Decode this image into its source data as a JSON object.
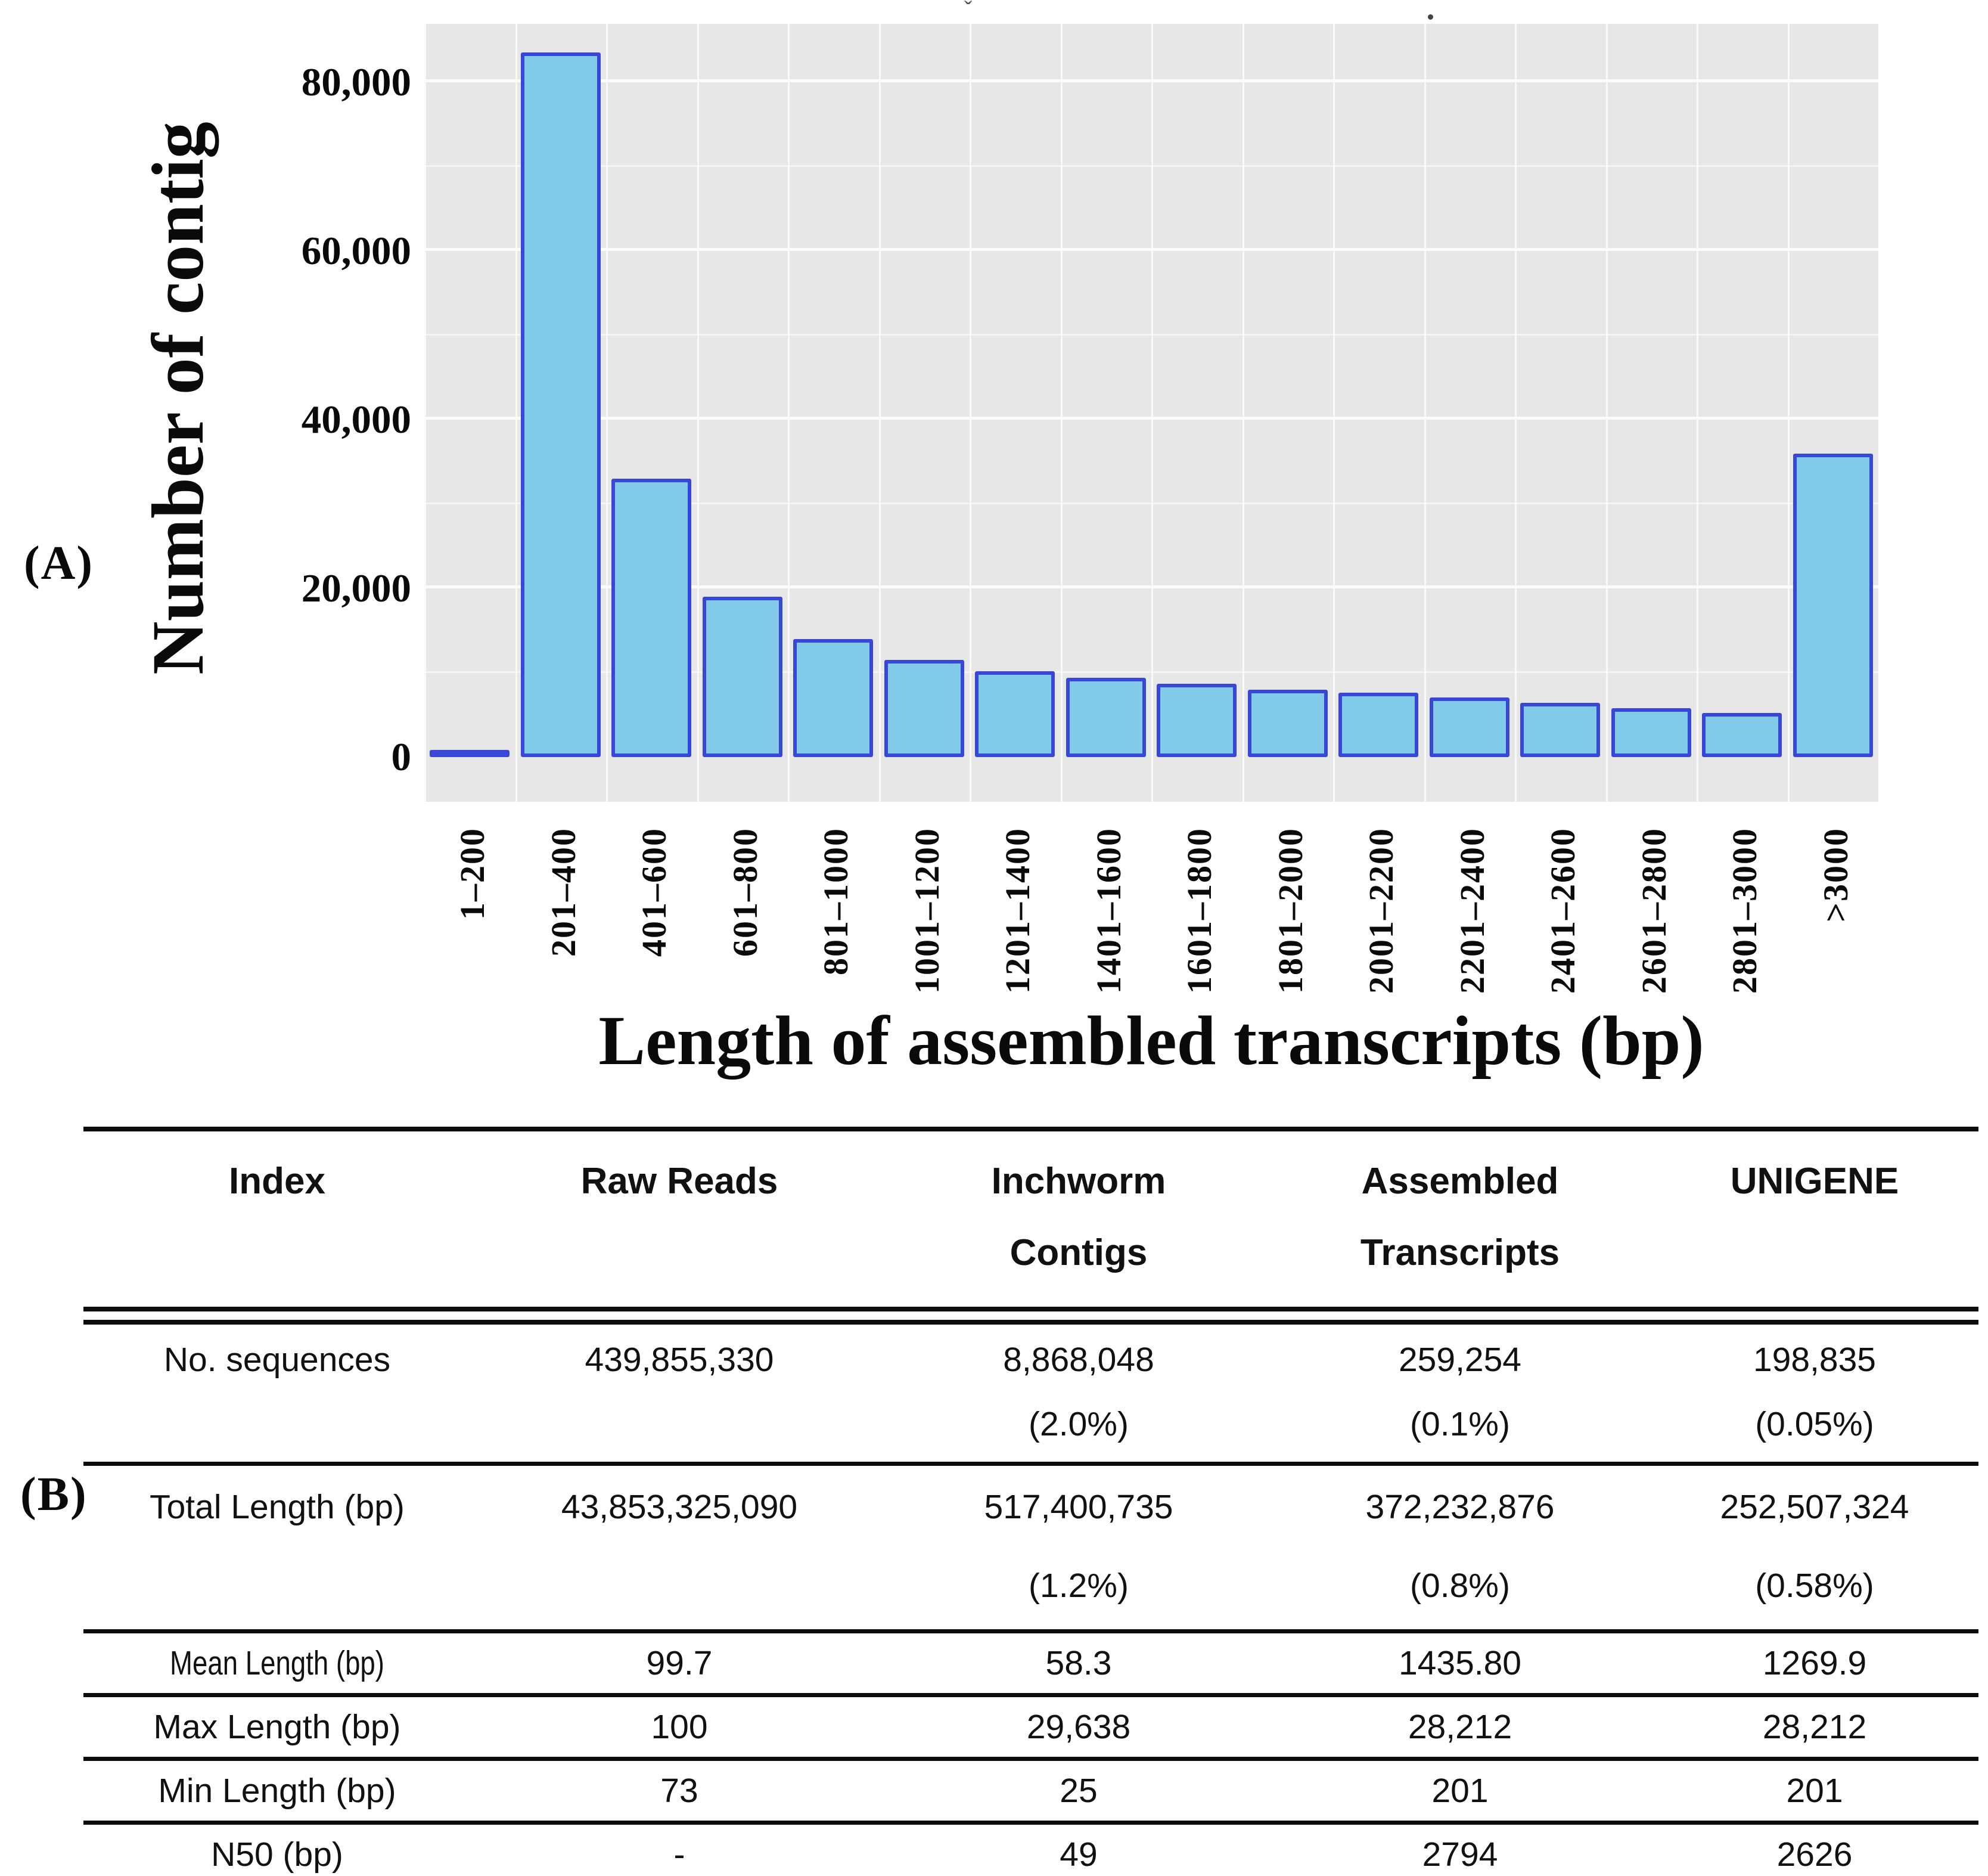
{
  "panel_a": {
    "label": "(A)",
    "artifact_caret": "ˇ"
  },
  "panel_b": {
    "label": "(B)"
  },
  "chart_data": {
    "type": "bar",
    "title": "",
    "xlabel": "Length of assembled transcripts (bp)",
    "ylabel": "Number of contig",
    "categories": [
      "1–200",
      "201–400",
      "401–600",
      "601–800",
      "801–1000",
      "1001–1200",
      "1201–1400",
      "1401–1600",
      "1601–1800",
      "1801–2000",
      "2001–2200",
      "2201–2400",
      "2401–2600",
      "2601–2800",
      "2801–3000",
      ">3000"
    ],
    "values": [
      400,
      83500,
      33000,
      19000,
      14000,
      11500,
      10200,
      9400,
      8700,
      8000,
      7600,
      7100,
      6400,
      5800,
      5200,
      36000
    ],
    "ylim": [
      0,
      85000
    ],
    "grid": "on",
    "legend": "none",
    "yticks": [
      {
        "v": 0,
        "label": "0"
      },
      {
        "v": 20000,
        "label": "20,000"
      },
      {
        "v": 40000,
        "label": "40,000"
      },
      {
        "v": 60000,
        "label": "60,000"
      },
      {
        "v": 80000,
        "label": "80,000"
      }
    ],
    "colors": {
      "bar_fill": "#82cbe8",
      "bar_border": "#3947d8",
      "panel_background": "#e7e7e7",
      "gridline": "#ffffff"
    }
  },
  "table": {
    "columns": [
      {
        "line1": "Index",
        "line2": ""
      },
      {
        "line1": "Raw Reads",
        "line2": ""
      },
      {
        "line1": "Inchworm",
        "line2": "Contigs"
      },
      {
        "line1": "Assembled",
        "line2": "Transcripts"
      },
      {
        "line1": "UNIGENE",
        "line2": ""
      }
    ],
    "rows": [
      {
        "label": "No. sequences",
        "cells": [
          {
            "v": "439,855,330",
            "p": ""
          },
          {
            "v": "8,868,048",
            "p": "(2.0%)"
          },
          {
            "v": "259,254",
            "p": "(0.1%)"
          },
          {
            "v": "198,835",
            "p": "(0.05%)"
          }
        ]
      },
      {
        "label": "Total Length (bp)",
        "cells": [
          {
            "v": "43,853,325,090",
            "p": ""
          },
          {
            "v": "517,400,735",
            "p": "(1.2%)"
          },
          {
            "v": "372,232,876",
            "p": "(0.8%)"
          },
          {
            "v": "252,507,324",
            "p": "(0.58%)"
          }
        ]
      },
      {
        "label": "Mean Length (bp)",
        "cells": [
          {
            "v": "99.7"
          },
          {
            "v": "58.3"
          },
          {
            "v": "1435.80"
          },
          {
            "v": "1269.9"
          }
        ]
      },
      {
        "label": "Max Length (bp)",
        "cells": [
          {
            "v": "100"
          },
          {
            "v": "29,638"
          },
          {
            "v": "28,212"
          },
          {
            "v": "28,212"
          }
        ]
      },
      {
        "label": "Min Length (bp)",
        "cells": [
          {
            "v": "73"
          },
          {
            "v": "25"
          },
          {
            "v": "201"
          },
          {
            "v": "201"
          }
        ]
      },
      {
        "label": "N50 (bp)",
        "cells": [
          {
            "v": "-"
          },
          {
            "v": "49"
          },
          {
            "v": "2794"
          },
          {
            "v": "2626"
          }
        ]
      }
    ]
  }
}
